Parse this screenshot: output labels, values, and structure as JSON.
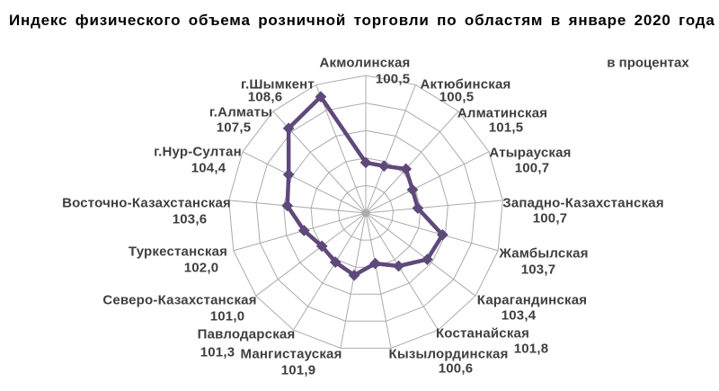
{
  "title": "Индекс физического объема розничной торговли по областям в январе 2020 года",
  "units_note": "в процентах",
  "chart_data": {
    "type": "radar",
    "title": "Индекс физического объема розничной торговли по областям в январе 2020 года",
    "subtitle": "в процентах",
    "categories": [
      "Акмолинская",
      "Актюбинская",
      "Алматинская",
      "Атырауская",
      "Западно-Казахстанская",
      "Жамбылская",
      "Карагандинская",
      "Костанайская",
      "Кызылординская",
      "Мангистауская",
      "Павлодарская",
      "Северо-Казахстанская",
      "Туркестанская",
      "Восточно-Казахстанская",
      "г.Нур-Султан",
      "г.Алматы",
      "г.Шымкент"
    ],
    "values": [
      100.5,
      100.5,
      101.5,
      100.7,
      100.7,
      103.7,
      103.4,
      101.8,
      100.6,
      101.9,
      101.3,
      101.0,
      102.0,
      103.6,
      104.4,
      107.5,
      108.6
    ],
    "value_labels": [
      "100,5",
      "100,5",
      "101,5",
      "100,7",
      "100,7",
      "103,7",
      "103,4",
      "101,8",
      "100,6",
      "101,9",
      "101,3",
      "101,0",
      "102,0",
      "103,6",
      "104,4",
      "107,5",
      "108,6"
    ],
    "axis_range": [
      95,
      110
    ],
    "grid_step": 3,
    "grid": true,
    "legend_position": "none",
    "line_color": "#5F497A",
    "grid_color": "#ABABAB",
    "label_color": "#3F3F3F"
  }
}
